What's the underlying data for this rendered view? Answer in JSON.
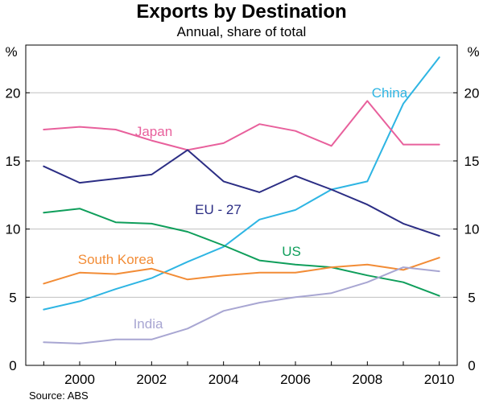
{
  "chart_data": {
    "type": "line",
    "title": "Exports by Destination",
    "subtitle": "Annual, share of total",
    "ylabel_left": "%",
    "ylabel_right": "%",
    "source": "Source: ABS",
    "ylim": [
      0,
      23.5
    ],
    "xlim": [
      1998.5,
      2010.5
    ],
    "y_ticks": [
      0,
      5,
      10,
      15,
      20
    ],
    "y_tick_labels": [
      "0",
      "5",
      "10",
      "15",
      "20"
    ],
    "x_ticks": [
      2000,
      2002,
      2004,
      2006,
      2008,
      2010
    ],
    "x_tick_labels": [
      "2000",
      "2002",
      "2004",
      "2006",
      "2008",
      "2010"
    ],
    "x": [
      1999,
      2000,
      2001,
      2002,
      2003,
      2004,
      2005,
      2006,
      2007,
      2008,
      2009,
      2010
    ],
    "series": [
      {
        "name": "China",
        "color": "#2eb5e3",
        "values": [
          4.1,
          4.7,
          5.6,
          6.4,
          7.6,
          8.7,
          10.7,
          11.4,
          12.9,
          13.5,
          19.2,
          22.6
        ]
      },
      {
        "name": "Japan",
        "color": "#e8609c",
        "values": [
          17.3,
          17.5,
          17.3,
          16.5,
          15.8,
          16.3,
          17.7,
          17.2,
          16.1,
          19.4,
          16.2,
          16.2
        ]
      },
      {
        "name": "EU - 27",
        "color": "#2b2d84",
        "values": [
          14.6,
          13.4,
          13.7,
          14.0,
          15.8,
          13.5,
          12.7,
          13.9,
          12.9,
          11.8,
          10.4,
          9.5
        ]
      },
      {
        "name": "US",
        "color": "#0f9e5b",
        "values": [
          11.2,
          11.5,
          10.5,
          10.4,
          9.8,
          8.8,
          7.7,
          7.4,
          7.2,
          6.6,
          6.1,
          5.1
        ]
      },
      {
        "name": "South Korea",
        "color": "#f28c36",
        "values": [
          6.0,
          6.8,
          6.7,
          7.1,
          6.3,
          6.6,
          6.8,
          6.8,
          7.2,
          7.4,
          7.0,
          7.9
        ]
      },
      {
        "name": "India",
        "color": "#a8a6d2",
        "values": [
          1.7,
          1.6,
          1.9,
          1.9,
          2.7,
          4.0,
          4.6,
          5.0,
          5.3,
          6.1,
          7.2,
          6.9
        ]
      }
    ]
  }
}
